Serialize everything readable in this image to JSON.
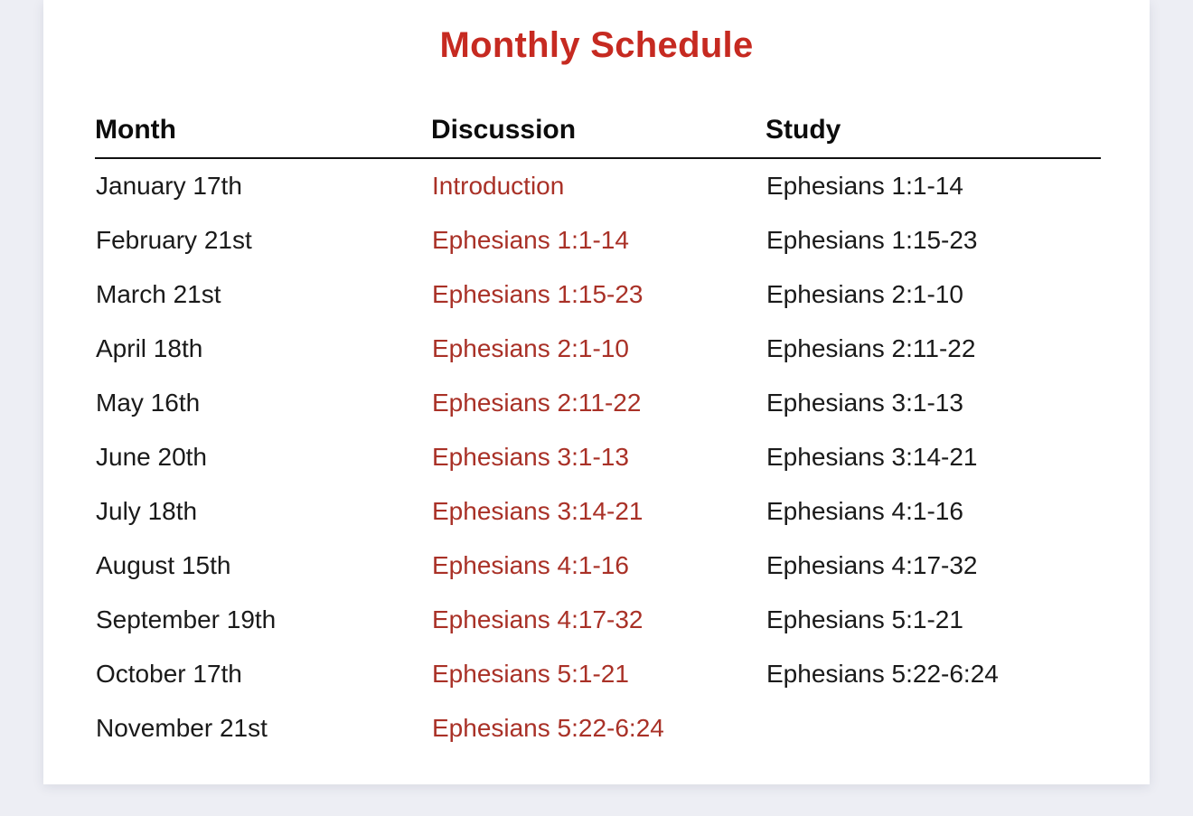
{
  "colors": {
    "page_background": "#edeef4",
    "card_background": "#ffffff",
    "title_red": "#c62a21",
    "discussion_red": "#a93127",
    "text_black": "#1a1a1a",
    "rule_black": "#111111"
  },
  "title": "Monthly Schedule",
  "table": {
    "columns": [
      "Month",
      "Discussion",
      "Study"
    ],
    "rows": [
      {
        "month": "January 17th",
        "discussion": "Introduction",
        "study": "Ephesians 1:1-14"
      },
      {
        "month": "February 21st",
        "discussion": "Ephesians 1:1-14",
        "study": "Ephesians 1:15-23"
      },
      {
        "month": "March 21st",
        "discussion": "Ephesians 1:15-23",
        "study": "Ephesians 2:1-10"
      },
      {
        "month": "April 18th",
        "discussion": "Ephesians 2:1-10",
        "study": "Ephesians 2:11-22"
      },
      {
        "month": "May 16th",
        "discussion": "Ephesians 2:11-22",
        "study": "Ephesians 3:1-13"
      },
      {
        "month": "June 20th",
        "discussion": "Ephesians 3:1-13",
        "study": "Ephesians 3:14-21"
      },
      {
        "month": "July 18th",
        "discussion": "Ephesians 3:14-21",
        "study": "Ephesians 4:1-16"
      },
      {
        "month": "August 15th",
        "discussion": "Ephesians 4:1-16",
        "study": "Ephesians 4:17-32"
      },
      {
        "month": "September 19th",
        "discussion": "Ephesians 4:17-32",
        "study": "Ephesians 5:1-21"
      },
      {
        "month": "October 17th",
        "discussion": "Ephesians 5:1-21",
        "study": "Ephesians 5:22-6:24"
      },
      {
        "month": "November 21st",
        "discussion": "Ephesians 5:22-6:24",
        "study": ""
      }
    ]
  }
}
